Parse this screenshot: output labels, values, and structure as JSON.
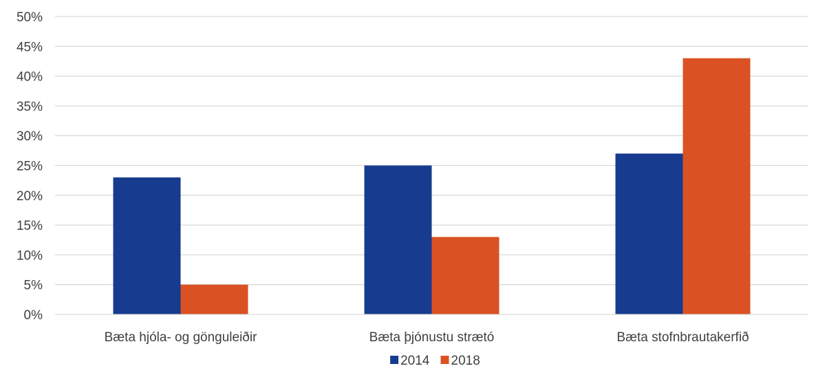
{
  "chart_data": {
    "type": "bar",
    "categories": [
      "Bæta hjóla- og gönguleiðir",
      "Bæta þjónustu strætó",
      "Bæta stofnbrautakerfið"
    ],
    "series": [
      {
        "name": "2014",
        "values": [
          23,
          25,
          27
        ],
        "color": "#173B8E"
      },
      {
        "name": "2018",
        "values": [
          5,
          13,
          43
        ],
        "color": "#DA5224"
      }
    ],
    "ylim": [
      0,
      50
    ],
    "yticks": [
      "0%",
      "5%",
      "10%",
      "15%",
      "20%",
      "25%",
      "30%",
      "35%",
      "40%",
      "45%",
      "50%"
    ],
    "title": "",
    "xlabel": "",
    "ylabel": "",
    "grid": true,
    "legend": "bottom-center",
    "colors": {
      "grid": "#D9D9D9",
      "text": "#404040"
    }
  }
}
